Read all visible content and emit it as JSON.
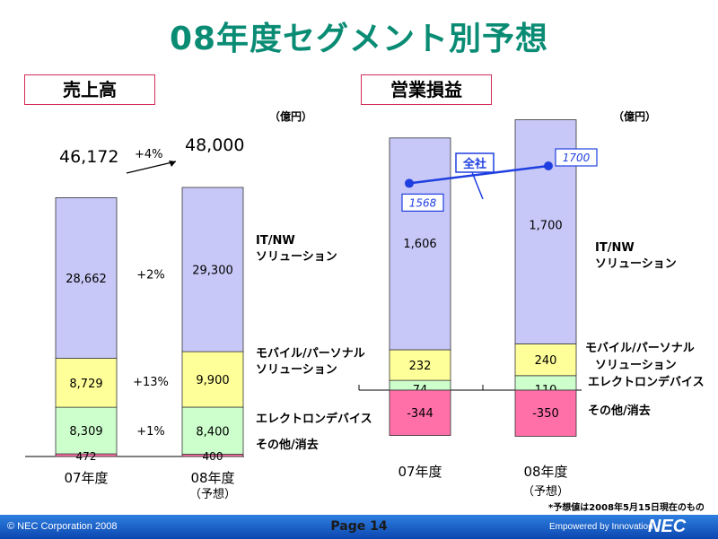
{
  "title": "08年度セグメント別予想",
  "note": "*予想値は2008年5月15日現在のもの",
  "footer": {
    "copyright": "© NEC Corporation 2008",
    "page": "Page 14",
    "tagline": "Empowered by Innovation",
    "logo": "NEC"
  },
  "colors": {
    "it_nw": "#c8c8f8",
    "mobile": "#ffff99",
    "electron": "#ccffcc",
    "other": "#ff6fa8",
    "accent": "#0a8c74",
    "line": "#1f3fe0"
  },
  "chart_data": [
    {
      "type": "bar",
      "title": "売上高",
      "unit": "（億円）",
      "categories": [
        "07年度",
        "08年度"
      ],
      "category_sub": [
        "",
        "（予想）"
      ],
      "series": [
        {
          "name": "IT/NW ソリューション",
          "values": [
            28662,
            29300
          ],
          "labels": [
            "28,662",
            "29,300"
          ],
          "growth": "+2%"
        },
        {
          "name": "モバイル/パーソナル ソリューション",
          "values": [
            8729,
            9900
          ],
          "labels": [
            "8,729",
            "9,900"
          ],
          "growth": "+13%"
        },
        {
          "name": "エレクトロンデバイス",
          "values": [
            8309,
            8400
          ],
          "labels": [
            "8,309",
            "8,400"
          ],
          "growth": "+1%"
        },
        {
          "name": "その他/消去",
          "values": [
            472,
            400
          ],
          "labels": [
            "472",
            "400"
          ],
          "growth": ""
        }
      ],
      "totals": [
        "46,172",
        "48,000"
      ],
      "total_growth": "+4%",
      "legend": [
        "IT/NW",
        "ソリューション",
        "モバイル/パーソナル",
        "ソリューション",
        "エレクトロンデバイス",
        "その他/消去"
      ]
    },
    {
      "type": "bar",
      "title": "営業損益",
      "unit": "（億円）",
      "categories": [
        "07年度",
        "08年度"
      ],
      "category_sub": [
        "",
        "（予想）"
      ],
      "series": [
        {
          "name": "IT/NW ソリューション",
          "values": [
            1606,
            1700
          ],
          "labels": [
            "1,606",
            "1,700"
          ]
        },
        {
          "name": "モバイル/パーソナル ソリューション",
          "values": [
            232,
            240
          ],
          "labels": [
            "232",
            "240"
          ]
        },
        {
          "name": "エレクトロンデバイス",
          "values": [
            74,
            110
          ],
          "labels": [
            "74",
            "110"
          ]
        },
        {
          "name": "その他/消去",
          "values": [
            -344,
            -350
          ],
          "labels": [
            "-344",
            "-350"
          ]
        }
      ],
      "line_series": {
        "name": "全社",
        "values": [
          1568,
          1700
        ],
        "labels": [
          "1568",
          "1700"
        ]
      },
      "legend": [
        "IT/NW",
        "ソリューション",
        "モバイル/パーソナル",
        "ソリューション",
        "エレクトロンデバイス",
        "その他/消去"
      ]
    }
  ]
}
